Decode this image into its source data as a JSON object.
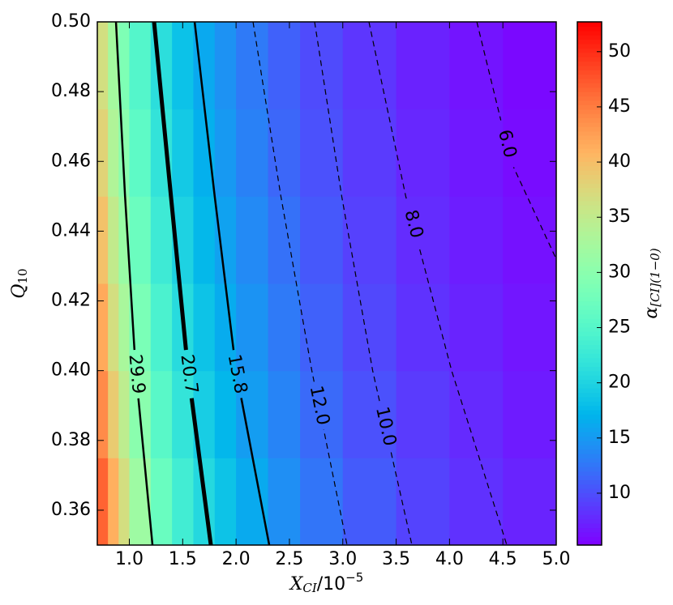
{
  "chart_data": {
    "type": "heatmap",
    "xlabel": {
      "main": "X",
      "sub": "CI",
      "rest": "/10",
      "sup": "−5"
    },
    "ylabel": {
      "main": "Q",
      "sub": "10"
    },
    "colorbar_label": {
      "main": "α",
      "sub": "[CI](1−0)"
    },
    "colormap": "rainbow",
    "xlim": [
      0.7,
      5.0
    ],
    "ylim": [
      0.35,
      0.5
    ],
    "xticks": [
      {
        "value": 1,
        "label": "1.0"
      },
      1.5,
      {
        "value": 2,
        "label": "2.0"
      },
      2.5,
      {
        "value": 3,
        "label": "3.0"
      },
      3.5,
      {
        "value": 4,
        "label": "4.0"
      },
      4.5,
      {
        "value": 5,
        "label": "5.0"
      }
    ],
    "yticks": [
      0.36,
      0.38,
      {
        "value": 0.4,
        "label": "0.40"
      },
      0.42,
      0.44,
      0.46,
      0.48,
      {
        "value": 0.5,
        "label": "0.50"
      }
    ],
    "clim": [
      5.3,
      52.7
    ],
    "cticks": [
      10,
      15,
      20,
      25,
      30,
      35,
      40,
      45,
      50
    ],
    "x_edges": [
      0.7,
      0.8,
      0.9,
      1.0,
      1.2,
      1.4,
      1.6,
      1.8,
      2.0,
      2.3,
      2.6,
      3.0,
      3.5,
      4.0,
      4.5,
      5.0
    ],
    "y_edges": [
      0.35,
      0.375,
      0.4,
      0.425,
      0.45,
      0.475,
      0.5
    ],
    "z": [
      [
        46.7,
        41.2,
        36.8,
        31.8,
        26.9,
        23.3,
        20.6,
        18.4,
        16.3,
        14.3,
        12.5,
        10.8,
        9.3,
        8.2,
        7.4
      ],
      [
        44.0,
        38.8,
        34.7,
        30.0,
        25.4,
        22.0,
        19.4,
        17.4,
        15.3,
        13.5,
        11.8,
        10.2,
        8.8,
        7.8,
        6.9
      ],
      [
        41.7,
        36.8,
        32.9,
        28.5,
        24.1,
        20.9,
        18.4,
        16.5,
        14.6,
        12.8,
        11.2,
        9.6,
        8.3,
        7.4,
        6.6
      ],
      [
        39.7,
        35.1,
        31.4,
        27.1,
        22.9,
        19.9,
        17.5,
        15.7,
        13.9,
        12.2,
        10.6,
        9.2,
        7.9,
        7.0,
        6.3
      ],
      [
        38.0,
        33.5,
        30.0,
        25.9,
        21.9,
        19.0,
        16.8,
        15.0,
        13.3,
        11.6,
        10.2,
        8.8,
        7.6,
        6.7,
        6.0
      ],
      [
        36.7,
        32.4,
        28.9,
        25.0,
        21.2,
        18.3,
        16.2,
        14.5,
        12.8,
        11.2,
        9.8,
        8.5,
        7.3,
        6.5,
        5.8
      ]
    ],
    "contours": [
      {
        "level": 29.9,
        "level_label": "29.9",
        "style": "solid",
        "width": 2.5,
        "x": [
          0.875,
          0.96,
          1.06,
          1.217
        ],
        "y": [
          0.5,
          0.45,
          0.4,
          0.35
        ]
      },
      {
        "level": 20.7,
        "level_label": "20.7",
        "style": "solid",
        "width": 5,
        "x": [
          1.232,
          1.39,
          1.55,
          1.764
        ],
        "y": [
          0.5,
          0.45,
          0.4,
          0.35
        ]
      },
      {
        "level": 15.8,
        "level_label": "15.8",
        "style": "solid",
        "width": 2.5,
        "x": [
          1.612,
          1.8,
          2.0,
          2.311
        ],
        "y": [
          0.5,
          0.45,
          0.4,
          0.35
        ]
      },
      {
        "level": 12,
        "level_label": "12.0",
        "style": "dashed",
        "width": 1.2,
        "x": [
          2.159,
          2.42,
          2.71,
          3.04
        ],
        "y": [
          0.5,
          0.45,
          0.4,
          0.35
        ]
      },
      {
        "level": 10,
        "level_label": "10.0",
        "style": "dashed",
        "width": 1.2,
        "x": [
          2.736,
          2.99,
          3.28,
          3.648
        ],
        "y": [
          0.5,
          0.45,
          0.4,
          0.35
        ]
      },
      {
        "level": 8,
        "level_label": "8.0",
        "style": "dashed",
        "width": 1.2,
        "x": [
          3.245,
          3.59,
          4.02,
          4.537
        ],
        "y": [
          0.5,
          0.45,
          0.4,
          0.35
        ]
      },
      {
        "level": 6,
        "level_label": "6.0",
        "style": "dashed",
        "width": 1.2,
        "x": [
          4.256,
          4.575,
          5.0
        ],
        "y": [
          0.5,
          0.46,
          0.432
        ]
      }
    ]
  }
}
